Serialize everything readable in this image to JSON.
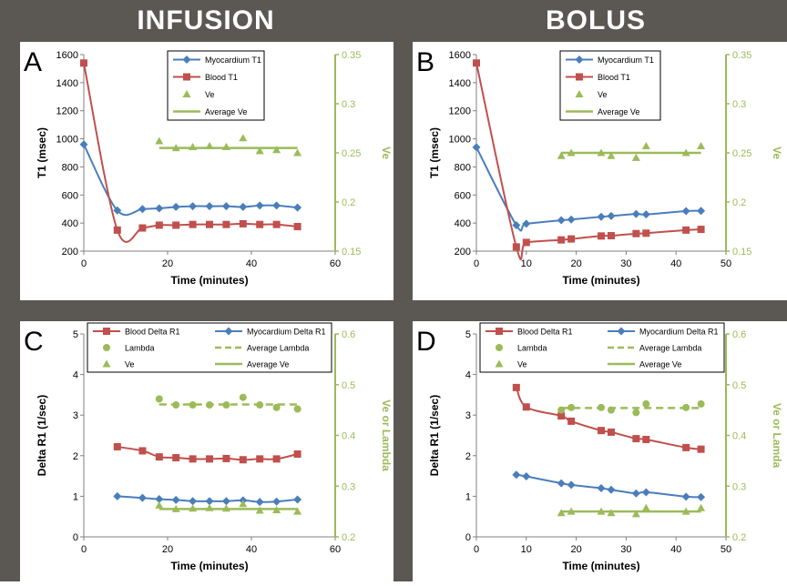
{
  "headers": {
    "left": "INFUSION",
    "right": "BOLUS"
  },
  "colors": {
    "myocardium": "#4a7ebb",
    "blood": "#c0504d",
    "ve": "#9bbb59",
    "background": "#5b5753"
  },
  "chart_data": [
    {
      "panel_label": "A",
      "type": "line",
      "xlabel": "Time (minutes)",
      "ylabel": "T1 (msec)",
      "y2label": "Ve",
      "xlim": [
        0,
        60
      ],
      "xticks": [
        0,
        20,
        40,
        60
      ],
      "ylim": [
        200,
        1600
      ],
      "yticks": [
        200,
        400,
        600,
        800,
        1000,
        1200,
        1400,
        1600
      ],
      "y2lim": [
        0.15,
        0.35
      ],
      "y2ticks": [
        "0.15",
        "0.2",
        "0.25",
        "0.3",
        "0.35"
      ],
      "legend_position": "top-center",
      "series": [
        {
          "name": "Myocardium T1",
          "axis": "left",
          "style": "line-diamond",
          "color": "#4a7ebb",
          "x": [
            0,
            8,
            14,
            18,
            22,
            26,
            30,
            34,
            38,
            42,
            46,
            51
          ],
          "y": [
            960,
            490,
            500,
            505,
            515,
            520,
            520,
            520,
            515,
            525,
            525,
            510
          ]
        },
        {
          "name": "Blood T1",
          "axis": "left",
          "style": "line-square",
          "color": "#c0504d",
          "x": [
            0,
            8,
            14,
            18,
            22,
            26,
            30,
            34,
            38,
            42,
            46,
            51
          ],
          "y": [
            1540,
            350,
            365,
            385,
            385,
            390,
            390,
            390,
            395,
            390,
            390,
            375
          ]
        },
        {
          "name": "Ve",
          "axis": "right",
          "style": "triangle",
          "color": "#9bbb59",
          "x": [
            18,
            22,
            26,
            30,
            34,
            38,
            42,
            46,
            51
          ],
          "y": [
            0.262,
            0.255,
            0.256,
            0.257,
            0.256,
            0.265,
            0.252,
            0.253,
            0.25
          ]
        },
        {
          "name": "Average Ve",
          "axis": "right",
          "style": "line",
          "color": "#9bbb59",
          "x": [
            18,
            51
          ],
          "y": [
            0.255,
            0.255
          ]
        }
      ]
    },
    {
      "panel_label": "B",
      "type": "line",
      "xlabel": "Time (minutes)",
      "ylabel": "T1 (msec)",
      "y2label": "Ve",
      "xlim": [
        0,
        50
      ],
      "xticks": [
        0,
        10,
        20,
        30,
        40,
        50
      ],
      "ylim": [
        200,
        1600
      ],
      "yticks": [
        200,
        400,
        600,
        800,
        1000,
        1200,
        1400,
        1600
      ],
      "y2lim": [
        0.15,
        0.35
      ],
      "y2ticks": [
        "0.15",
        "0.2",
        "0.25",
        "0.3",
        "0.35"
      ],
      "legend_position": "top-center",
      "series": [
        {
          "name": "Myocardium T1",
          "axis": "left",
          "style": "line-diamond",
          "color": "#4a7ebb",
          "x": [
            0,
            8,
            10,
            17,
            19,
            25,
            27,
            32,
            34,
            42,
            45
          ],
          "y": [
            940,
            385,
            395,
            420,
            425,
            445,
            450,
            465,
            462,
            485,
            487
          ]
        },
        {
          "name": "Blood T1",
          "axis": "left",
          "style": "line-square",
          "color": "#c0504d",
          "x": [
            0,
            8,
            10,
            17,
            19,
            25,
            27,
            32,
            34,
            42,
            45
          ],
          "y": [
            1540,
            230,
            262,
            280,
            287,
            308,
            310,
            325,
            328,
            350,
            355
          ]
        },
        {
          "name": "Ve",
          "axis": "right",
          "style": "triangle",
          "color": "#9bbb59",
          "x": [
            17,
            19,
            25,
            27,
            32,
            34,
            42,
            45
          ],
          "y": [
            0.247,
            0.25,
            0.25,
            0.247,
            0.245,
            0.257,
            0.25,
            0.257
          ]
        },
        {
          "name": "Average Ve",
          "axis": "right",
          "style": "line",
          "color": "#9bbb59",
          "x": [
            17,
            45
          ],
          "y": [
            0.25,
            0.25
          ]
        }
      ]
    },
    {
      "panel_label": "C",
      "type": "line",
      "xlabel": "Time (minutes)",
      "ylabel": "Delta R1 (1/sec)",
      "y2label": "Ve    or    Lambda",
      "xlim": [
        0,
        60
      ],
      "xticks": [
        0,
        20,
        40,
        60
      ],
      "ylim": [
        0,
        5
      ],
      "yticks": [
        0,
        1,
        2,
        3,
        4,
        5
      ],
      "y2lim": [
        0.2,
        0.6
      ],
      "y2ticks": [
        "0.2",
        "0.3",
        "0.4",
        "0.5",
        "0.6"
      ],
      "legend_position": "top",
      "series": [
        {
          "name": "Blood Delta R1",
          "axis": "left",
          "style": "line-square",
          "color": "#c0504d",
          "x": [
            8,
            14,
            18,
            22,
            26,
            30,
            34,
            38,
            42,
            46,
            51
          ],
          "y": [
            2.22,
            2.12,
            1.97,
            1.95,
            1.92,
            1.92,
            1.93,
            1.9,
            1.92,
            1.92,
            2.04
          ]
        },
        {
          "name": "Myocardium Delta R1",
          "axis": "left",
          "style": "line-diamond",
          "color": "#4a7ebb",
          "x": [
            8,
            14,
            18,
            22,
            26,
            30,
            34,
            38,
            42,
            46,
            51
          ],
          "y": [
            1.0,
            0.96,
            0.93,
            0.91,
            0.88,
            0.88,
            0.88,
            0.9,
            0.86,
            0.87,
            0.92
          ]
        },
        {
          "name": "Lambda",
          "axis": "right",
          "style": "circle",
          "color": "#9bbb59",
          "x": [
            18,
            22,
            26,
            30,
            34,
            38,
            42,
            46,
            51
          ],
          "y": [
            0.472,
            0.46,
            0.46,
            0.46,
            0.46,
            0.475,
            0.46,
            0.455,
            0.452
          ]
        },
        {
          "name": "Average Lambda",
          "axis": "right",
          "style": "dashed",
          "color": "#9bbb59",
          "x": [
            18,
            51
          ],
          "y": [
            0.461,
            0.461
          ]
        },
        {
          "name": "Ve",
          "axis": "right",
          "style": "triangle",
          "color": "#9bbb59",
          "x": [
            18,
            22,
            26,
            30,
            34,
            38,
            42,
            46,
            51
          ],
          "y": [
            0.262,
            0.255,
            0.256,
            0.257,
            0.256,
            0.265,
            0.252,
            0.253,
            0.25
          ]
        },
        {
          "name": "Average Ve",
          "axis": "right",
          "style": "line",
          "color": "#9bbb59",
          "x": [
            18,
            51
          ],
          "y": [
            0.255,
            0.255
          ]
        }
      ]
    },
    {
      "panel_label": "D",
      "type": "line",
      "xlabel": "Time (minutes)",
      "ylabel": "Delta R1 (1/sec)",
      "y2label": "Ve    or    Lamda",
      "xlim": [
        0,
        50
      ],
      "xticks": [
        0,
        10,
        20,
        30,
        40,
        50
      ],
      "ylim": [
        0,
        5
      ],
      "yticks": [
        0,
        1,
        2,
        3,
        4,
        5
      ],
      "y2lim": [
        0.2,
        0.6
      ],
      "y2ticks": [
        "0.2",
        "0.3",
        "0.4",
        "0.5",
        "0.6"
      ],
      "legend_position": "top",
      "series": [
        {
          "name": "Blood Delta R1",
          "axis": "left",
          "style": "line-square",
          "color": "#c0504d",
          "x": [
            8,
            10,
            17,
            19,
            25,
            27,
            32,
            34,
            42,
            45
          ],
          "y": [
            3.68,
            3.2,
            2.98,
            2.85,
            2.62,
            2.58,
            2.42,
            2.4,
            2.2,
            2.16
          ]
        },
        {
          "name": "Myocardium Delta R1",
          "axis": "left",
          "style": "line-diamond",
          "color": "#4a7ebb",
          "x": [
            8,
            10,
            17,
            19,
            25,
            27,
            32,
            34,
            42,
            45
          ],
          "y": [
            1.53,
            1.49,
            1.32,
            1.28,
            1.2,
            1.16,
            1.07,
            1.1,
            0.99,
            0.98
          ]
        },
        {
          "name": "Lambda",
          "axis": "right",
          "style": "circle",
          "color": "#9bbb59",
          "x": [
            17,
            19,
            25,
            27,
            32,
            34,
            42,
            45
          ],
          "y": [
            0.45,
            0.455,
            0.455,
            0.45,
            0.445,
            0.462,
            0.455,
            0.462
          ]
        },
        {
          "name": "Average Lambda",
          "axis": "right",
          "style": "dashed",
          "color": "#9bbb59",
          "x": [
            17,
            45
          ],
          "y": [
            0.454,
            0.454
          ]
        },
        {
          "name": "Ve",
          "axis": "right",
          "style": "triangle",
          "color": "#9bbb59",
          "x": [
            17,
            19,
            25,
            27,
            32,
            34,
            42,
            45
          ],
          "y": [
            0.247,
            0.25,
            0.25,
            0.247,
            0.245,
            0.257,
            0.25,
            0.257
          ]
        },
        {
          "name": "Average Ve",
          "axis": "right",
          "style": "line",
          "color": "#9bbb59",
          "x": [
            17,
            45
          ],
          "y": [
            0.25,
            0.25
          ]
        }
      ]
    }
  ]
}
